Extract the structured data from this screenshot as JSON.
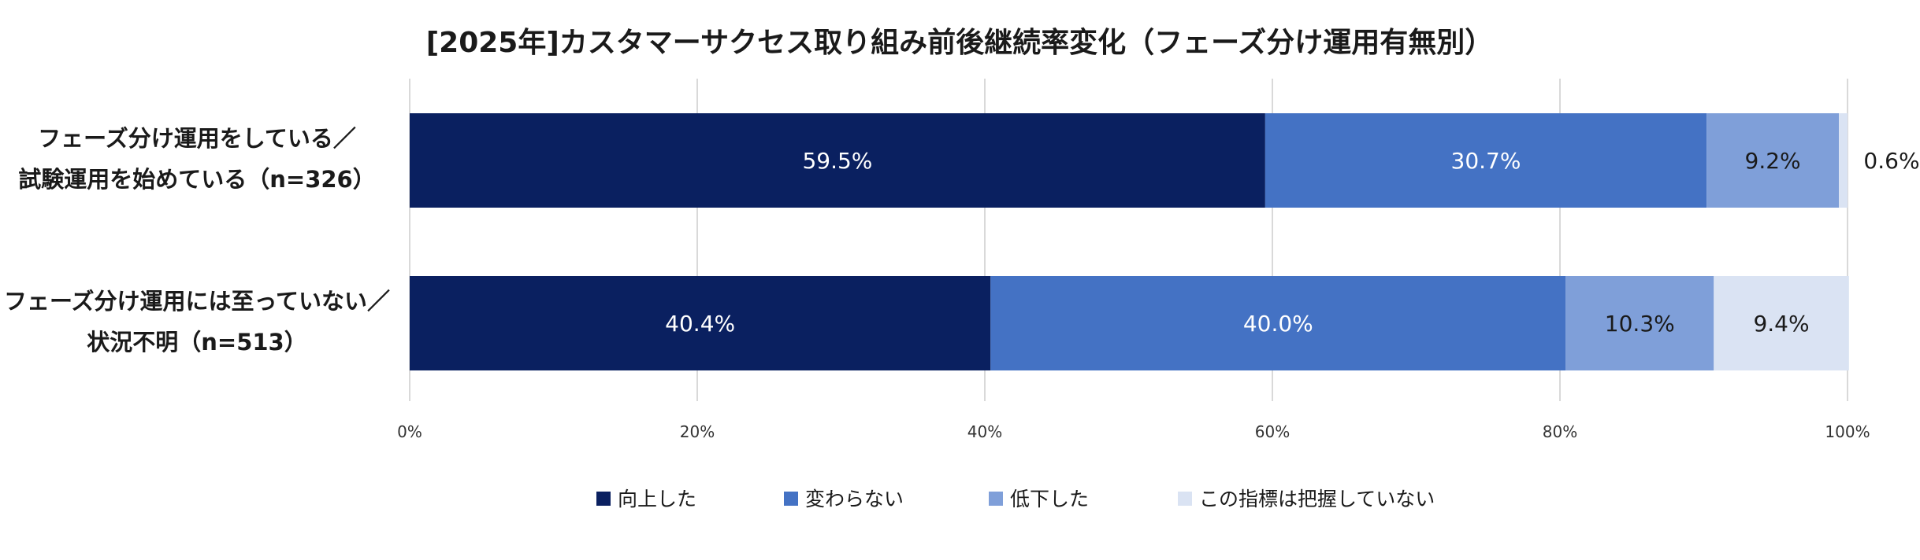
{
  "chart_data": {
    "type": "bar",
    "orientation": "horizontal",
    "stacked": true,
    "title": "[2025年]カスタマーサクセス取り組み前後継続率変化（フェーズ分け運用有無別）",
    "categories": [
      [
        "フェーズ分け運用をしている／",
        "試験運用を始めている（n=326）"
      ],
      [
        "フェーズ分け運用には至っていない／",
        "状況不明（n=513）"
      ]
    ],
    "series": [
      {
        "name": "向上した",
        "values": [
          59.5,
          40.4
        ],
        "labels": [
          "59.5%",
          "40.4%"
        ],
        "color": "#0a2060",
        "label_color": "#ffffff"
      },
      {
        "name": "変わらない",
        "values": [
          30.7,
          40.0
        ],
        "labels": [
          "30.7%",
          "40.0%"
        ],
        "color": "#4472c4",
        "label_color": "#ffffff"
      },
      {
        "name": "低下した",
        "values": [
          9.2,
          10.3
        ],
        "labels": [
          "9.2%",
          "10.3%"
        ],
        "color": "#7f9fd9",
        "label_color": "#1a1a1a"
      },
      {
        "name": "この指標は把握していない",
        "values": [
          0.6,
          9.4
        ],
        "labels": [
          "0.6%",
          "9.4%"
        ],
        "color": "#dae3f3",
        "label_color": "#1a1a1a"
      }
    ],
    "xlim": [
      0,
      100
    ],
    "xticks": [
      0,
      20,
      40,
      60,
      80,
      100
    ],
    "xtick_labels": [
      "0%",
      "20%",
      "40%",
      "60%",
      "80%",
      "100%"
    ],
    "grid": true,
    "legend_position": "bottom"
  }
}
